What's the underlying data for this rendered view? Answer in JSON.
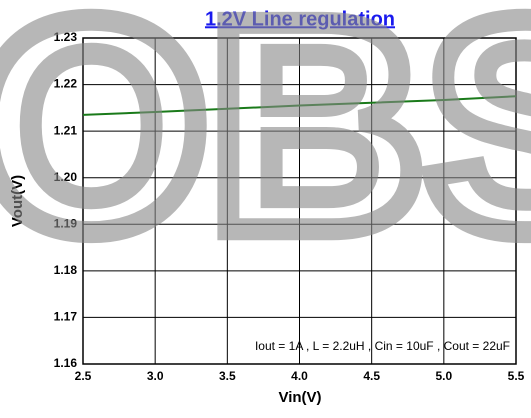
{
  "chart_data": {
    "type": "line",
    "title": "1.2V Line regulation",
    "x_label": "Vin(V)",
    "y_label": "Vout(V)",
    "annotation": "Iout = 1A , L = 2.2uH , Cin = 10uF , Cout = 22uF",
    "watermark": "OBS",
    "x": [
      2.5,
      3.0,
      3.5,
      4.0,
      4.5,
      5.0,
      5.5
    ],
    "series": [
      {
        "color": "#1a7a1a",
        "values": [
          1.2135,
          1.2141,
          1.2148,
          1.2155,
          1.2161,
          1.2167,
          1.2175
        ]
      }
    ],
    "xlim": [
      2.5,
      5.5
    ],
    "ylim": [
      1.16,
      1.23
    ],
    "xticks": [
      2.5,
      {
        "value": 3.0,
        "label": "3.0"
      },
      3.5,
      {
        "value": 4.0,
        "label": "4.0"
      },
      4.5,
      {
        "value": 5.0,
        "label": "5.0"
      },
      5.5
    ],
    "yticks": [
      {
        "value": 1.16,
        "label": "1.16"
      },
      1.17,
      1.18,
      1.19,
      {
        "value": 1.2,
        "label": "1.20"
      },
      1.21,
      1.22,
      1.23
    ],
    "grid": true
  }
}
